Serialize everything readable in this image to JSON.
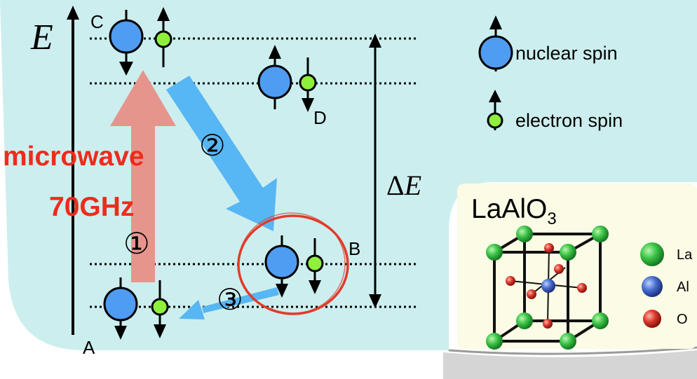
{
  "axis": {
    "energy_symbol": "E",
    "delta_prefix": "Δ",
    "delta_symbol": "E"
  },
  "levels": {
    "A": "A",
    "B": "B",
    "C": "C",
    "D": "D"
  },
  "microwave": {
    "label": "microwave",
    "frequency": "70GHz"
  },
  "steps": {
    "step1": "①",
    "step2": "②",
    "step3": "③"
  },
  "legend": {
    "nuclear_spin": "nuclear spin",
    "electron_spin": "electron spin"
  },
  "crystal": {
    "formula_main": "LaAlO",
    "formula_subscript": "3",
    "atoms": [
      "La",
      "Al",
      "O"
    ]
  },
  "colors": {
    "background_panel": "#cdeeee",
    "nuclear_spin": "#4f9cf3",
    "electron_spin": "#8ef03c",
    "microwave_text": "#ee2b1c",
    "microwave_arrow": "#e6958d",
    "transition_arrow": "#57b6f4",
    "highlight_circle": "#e23b2a",
    "crystal_panel": "#fbfbe6",
    "atom_la": "#2eb33e",
    "atom_al": "#3e63c4",
    "atom_o": "#d02a25"
  }
}
